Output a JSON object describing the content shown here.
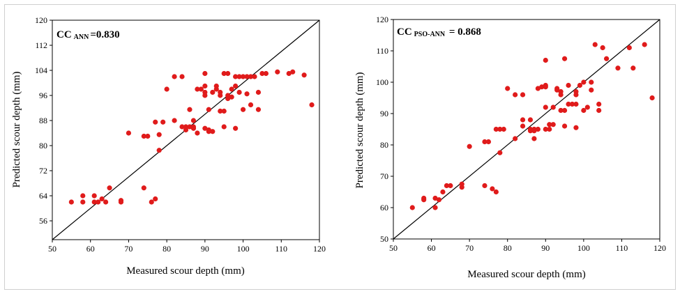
{
  "chart_data": [
    {
      "type": "scatter",
      "xlabel": "Measured scour depth (mm)",
      "ylabel": "Predicted scour depth (mm)",
      "xlim": [
        50,
        120
      ],
      "ylim": [
        50,
        120
      ],
      "xticks": [
        50,
        60,
        70,
        80,
        90,
        100,
        110,
        120
      ],
      "yticks": [
        56,
        64,
        72,
        80,
        88,
        96,
        104,
        112,
        120
      ],
      "xtick_labels": [
        "50",
        "60",
        "70",
        "80",
        "90",
        "100",
        "110",
        "120"
      ],
      "ytick_labels": [
        "56",
        "64",
        "72",
        "80",
        "88",
        "96",
        "104",
        "112",
        "120"
      ],
      "annotation": {
        "main": "CC",
        "sub": "ANN",
        "value": "=0.830"
      },
      "reference_line": "y = x",
      "marker_color": "#e01b1b",
      "points": [
        [
          55,
          62
        ],
        [
          58,
          64
        ],
        [
          58,
          62
        ],
        [
          61,
          64
        ],
        [
          61,
          62
        ],
        [
          62,
          62
        ],
        [
          63,
          63
        ],
        [
          64,
          62
        ],
        [
          65,
          66.5
        ],
        [
          68,
          62
        ],
        [
          68,
          62.5
        ],
        [
          70,
          84
        ],
        [
          74,
          83
        ],
        [
          74,
          66.5
        ],
        [
          75,
          83
        ],
        [
          76,
          62
        ],
        [
          77,
          63
        ],
        [
          77,
          87.5
        ],
        [
          78,
          78.5
        ],
        [
          78,
          83.5
        ],
        [
          79,
          87.5
        ],
        [
          80,
          98
        ],
        [
          82,
          102
        ],
        [
          82,
          88
        ],
        [
          84,
          102
        ],
        [
          84,
          86
        ],
        [
          85,
          85
        ],
        [
          85,
          86
        ],
        [
          86,
          91.5
        ],
        [
          86,
          86
        ],
        [
          87,
          86
        ],
        [
          87,
          88
        ],
        [
          87,
          85.5
        ],
        [
          88,
          98
        ],
        [
          88,
          84
        ],
        [
          89,
          98
        ],
        [
          90,
          103
        ],
        [
          90,
          97
        ],
        [
          90,
          96
        ],
        [
          90,
          99
        ],
        [
          90,
          85.5
        ],
        [
          91,
          85
        ],
        [
          91,
          91.5
        ],
        [
          91,
          84.5
        ],
        [
          92,
          97
        ],
        [
          92,
          84.5
        ],
        [
          93,
          99
        ],
        [
          93,
          98
        ],
        [
          94,
          97
        ],
        [
          94,
          96
        ],
        [
          94,
          91
        ],
        [
          95,
          91
        ],
        [
          95,
          103
        ],
        [
          95,
          86
        ],
        [
          96,
          103
        ],
        [
          96,
          96
        ],
        [
          96,
          95
        ],
        [
          97,
          95.5
        ],
        [
          97,
          98
        ],
        [
          98,
          99
        ],
        [
          98,
          102
        ],
        [
          98,
          85.5
        ],
        [
          99,
          97
        ],
        [
          99,
          102
        ],
        [
          100,
          102
        ],
        [
          100,
          91.5
        ],
        [
          101,
          102
        ],
        [
          101,
          96.5
        ],
        [
          102,
          102
        ],
        [
          102,
          93
        ],
        [
          103,
          102
        ],
        [
          104,
          97
        ],
        [
          104,
          91.5
        ],
        [
          105,
          103
        ],
        [
          106,
          103
        ],
        [
          109,
          103.5
        ],
        [
          112,
          103
        ],
        [
          113,
          103.5
        ],
        [
          116,
          102.5
        ],
        [
          118,
          93
        ]
      ]
    },
    {
      "type": "scatter",
      "xlabel": "Measured scour depth (mm)",
      "ylabel": "Predicted scour depth (mm)",
      "xlim": [
        50,
        120
      ],
      "ylim": [
        50,
        120
      ],
      "xticks": [
        50,
        60,
        70,
        80,
        90,
        100,
        110,
        120
      ],
      "yticks": [
        50,
        60,
        70,
        80,
        90,
        100,
        110,
        120
      ],
      "xtick_labels": [
        "50",
        "60",
        "70",
        "80",
        "90",
        "100",
        "110",
        "120"
      ],
      "ytick_labels": [
        "50",
        "60",
        "70",
        "80",
        "90",
        "100",
        "110",
        "120"
      ],
      "annotation": {
        "main": "CC",
        "sub": "PSO-ANN",
        "value": " = 0.868"
      },
      "reference_line": "y = x",
      "marker_color": "#e01b1b",
      "points": [
        [
          55,
          60
        ],
        [
          58,
          62.5
        ],
        [
          58,
          63
        ],
        [
          61,
          60
        ],
        [
          61,
          63
        ],
        [
          62,
          62.5
        ],
        [
          63,
          65
        ],
        [
          64,
          67
        ],
        [
          65,
          67
        ],
        [
          68,
          67.5
        ],
        [
          68,
          66.5
        ],
        [
          70,
          79.5
        ],
        [
          74,
          81
        ],
        [
          74,
          67
        ],
        [
          75,
          81
        ],
        [
          76,
          66
        ],
        [
          77,
          65
        ],
        [
          77,
          85
        ],
        [
          78,
          77.5
        ],
        [
          78,
          85
        ],
        [
          79,
          85
        ],
        [
          80,
          98
        ],
        [
          82,
          96
        ],
        [
          82,
          82
        ],
        [
          84,
          96
        ],
        [
          84,
          86
        ],
        [
          84,
          88
        ],
        [
          86,
          88
        ],
        [
          86,
          85
        ],
        [
          86,
          84.5
        ],
        [
          87,
          85
        ],
        [
          87,
          82
        ],
        [
          87,
          84.5
        ],
        [
          88,
          98
        ],
        [
          88,
          85
        ],
        [
          89,
          98.5
        ],
        [
          90,
          107
        ],
        [
          90,
          99
        ],
        [
          90,
          98.5
        ],
        [
          90,
          92
        ],
        [
          90,
          85
        ],
        [
          91,
          86.5
        ],
        [
          91,
          85
        ],
        [
          92,
          92
        ],
        [
          92,
          86.5
        ],
        [
          93,
          98
        ],
        [
          93,
          97.5
        ],
        [
          94,
          97
        ],
        [
          94,
          96
        ],
        [
          94,
          91
        ],
        [
          95,
          107.5
        ],
        [
          95,
          91
        ],
        [
          95,
          86
        ],
        [
          96,
          99
        ],
        [
          96,
          93
        ],
        [
          97,
          93
        ],
        [
          98,
          97
        ],
        [
          98,
          96
        ],
        [
          98,
          93
        ],
        [
          98,
          85.5
        ],
        [
          99,
          99
        ],
        [
          100,
          100
        ],
        [
          100,
          91
        ],
        [
          101,
          92
        ],
        [
          102,
          97.5
        ],
        [
          102,
          100
        ],
        [
          103,
          112
        ],
        [
          104,
          93
        ],
        [
          104,
          91
        ],
        [
          105,
          111
        ],
        [
          106,
          107.5
        ],
        [
          109,
          104.5
        ],
        [
          112,
          111
        ],
        [
          113,
          104.5
        ],
        [
          116,
          112
        ],
        [
          118,
          95
        ]
      ]
    }
  ]
}
